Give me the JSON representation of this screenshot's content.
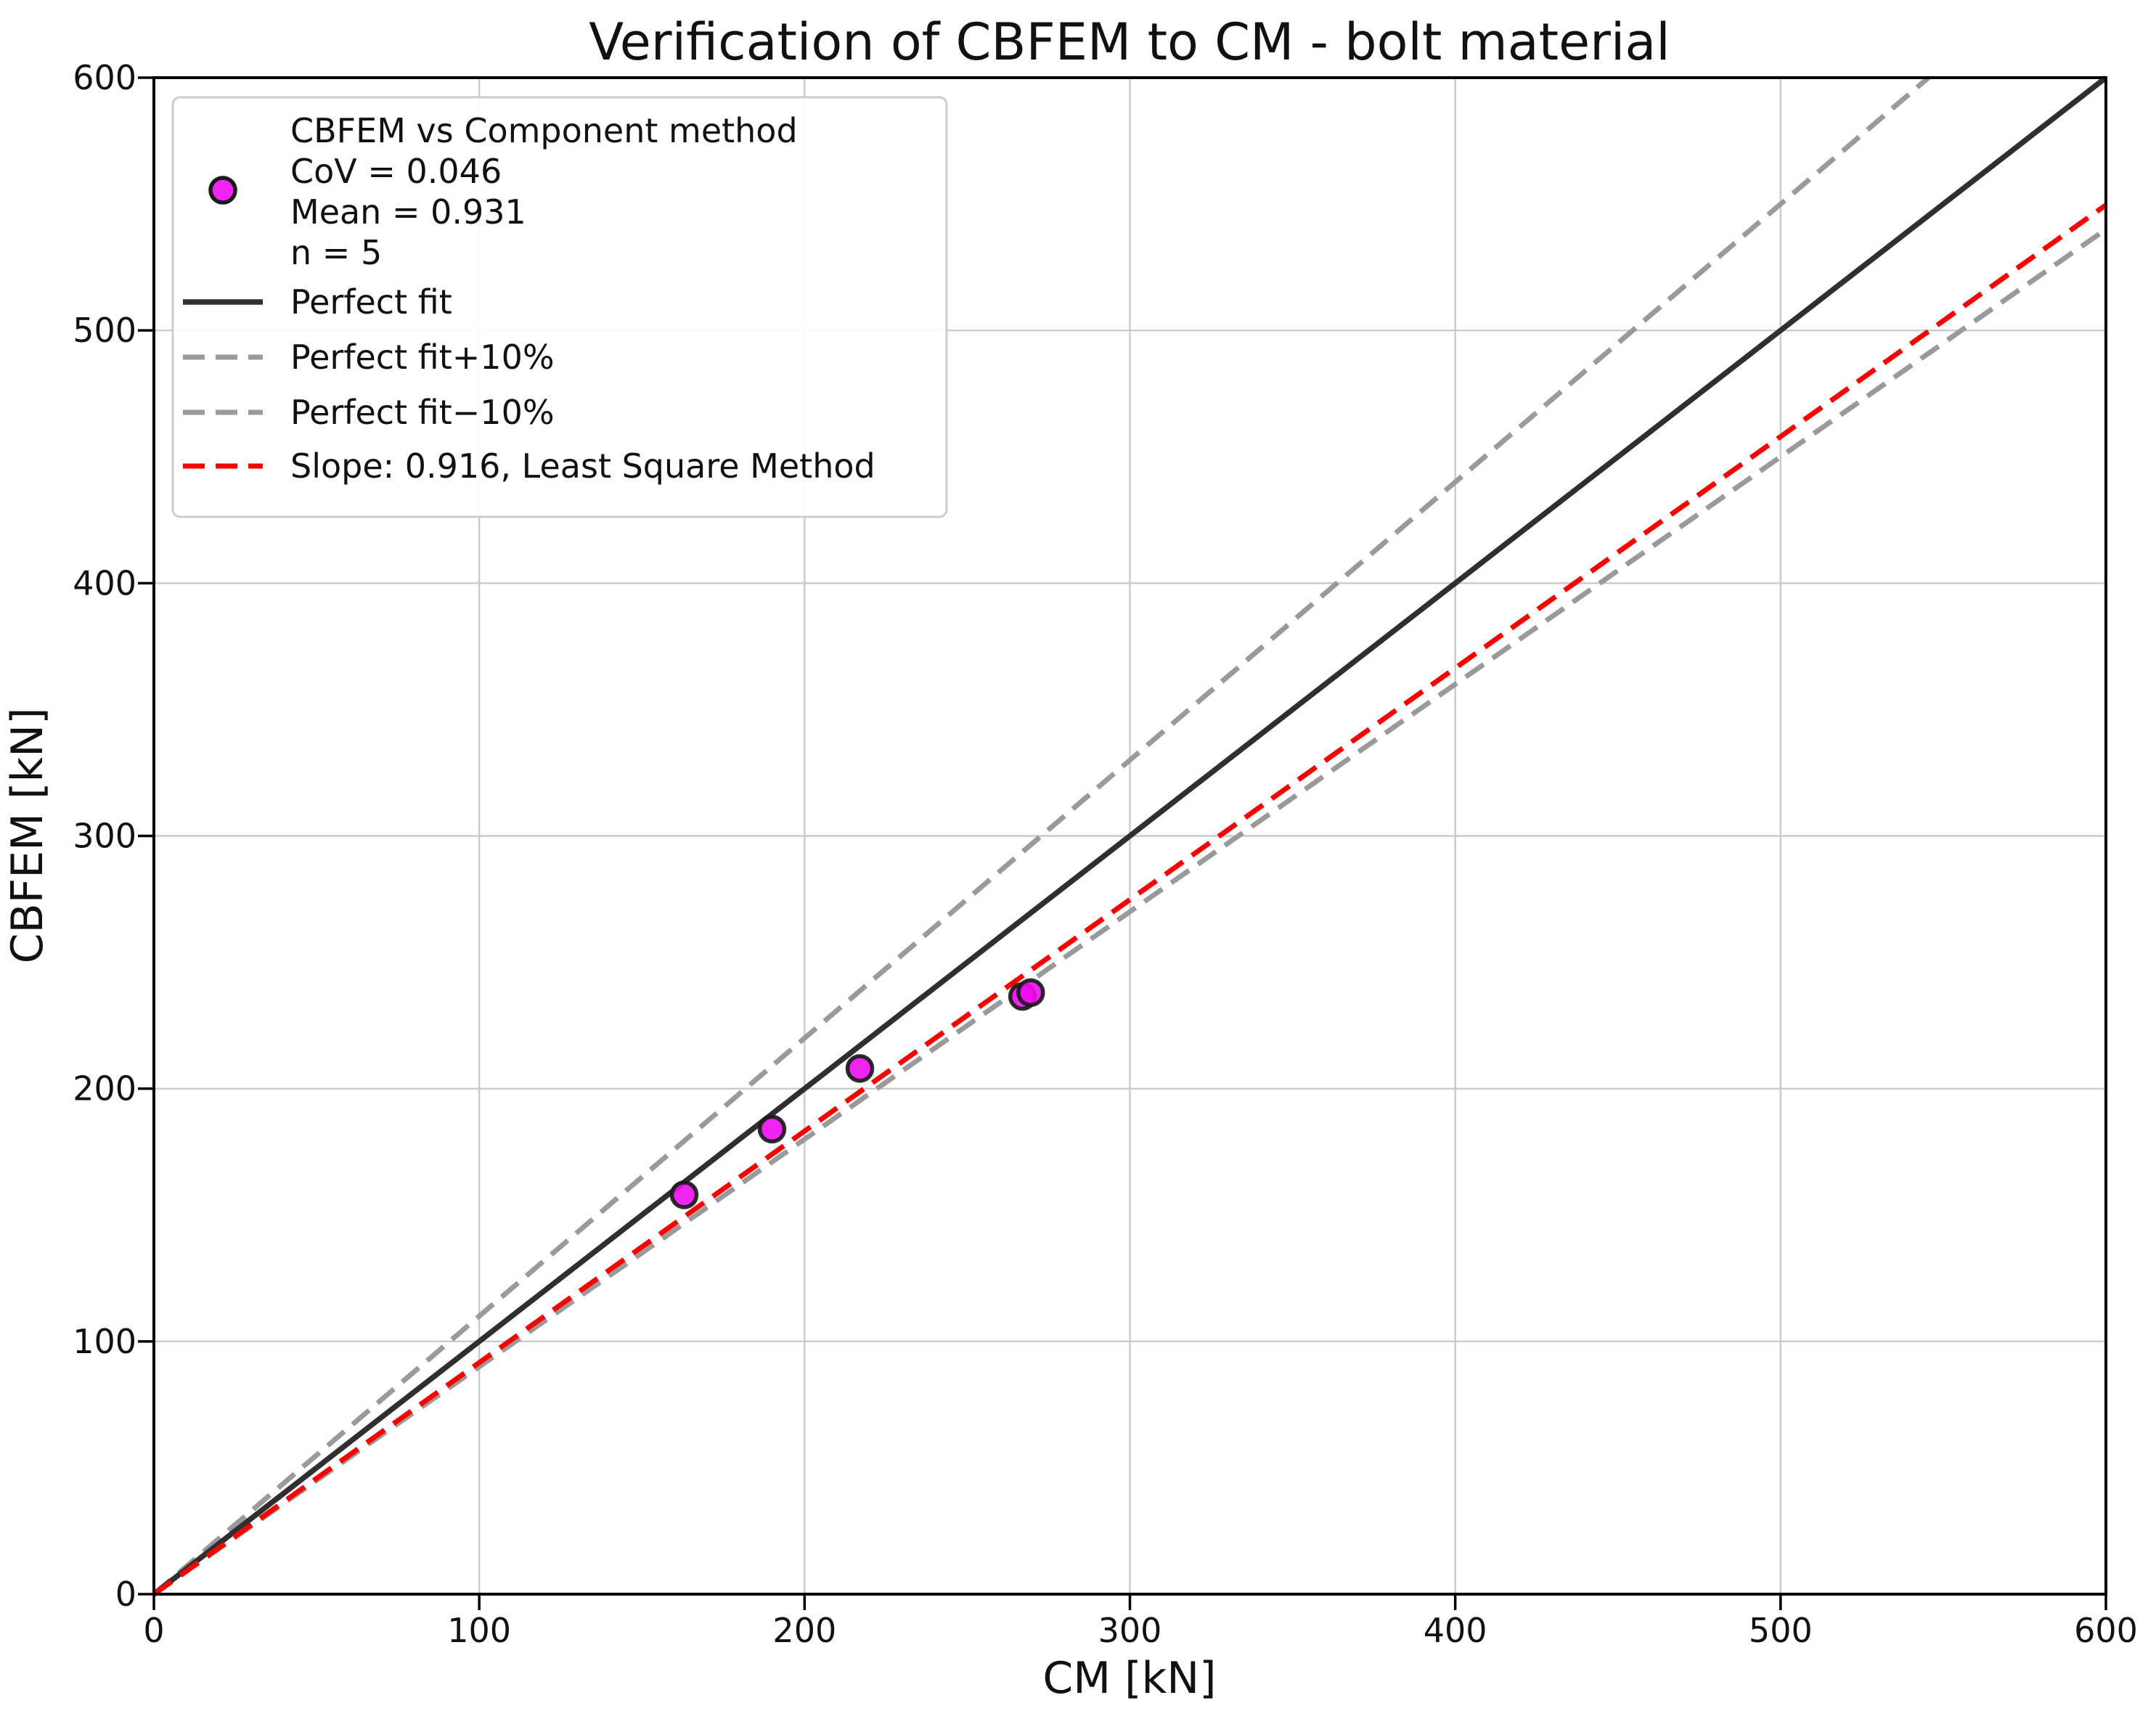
{
  "figure": {
    "window_title": "Verification of CBFEM to CM - bolt material"
  },
  "chart_data": {
    "type": "scatter",
    "title": "Verification of CBFEM to CM - bolt material",
    "xlabel": "CM [kN]",
    "ylabel": "CBFEM [kN]",
    "xlim": [
      0,
      600
    ],
    "ylim": [
      0,
      600
    ],
    "xticks": [
      0,
      100,
      200,
      300,
      400,
      500,
      600
    ],
    "yticks": [
      0,
      100,
      200,
      300,
      400,
      500,
      600
    ],
    "grid": true,
    "legend_position": "upper left",
    "scatter": {
      "label_lines": [
        "CBFEM vs Component method",
        "CoV = 0.046",
        "Mean = 0.931",
        "n = 5"
      ],
      "stats": {
        "cov": 0.046,
        "mean": 0.931,
        "n": 5
      },
      "marker_color": "#ee0cee",
      "marker_edge_color": "#1a1a1a",
      "points": [
        [
          163,
          158
        ],
        [
          190,
          184
        ],
        [
          217,
          208
        ],
        [
          267,
          236.5
        ],
        [
          269.5,
          238
        ]
      ]
    },
    "lines": [
      {
        "label": "Perfect fit",
        "slope": 1.0,
        "style": "solid",
        "color": "#2f2f2f"
      },
      {
        "label": "Perfect fit+10%",
        "slope": 1.1,
        "style": "dashed",
        "color": "#9a9a9a"
      },
      {
        "label": "Perfect fit−10%",
        "slope": 0.9,
        "style": "dashed",
        "color": "#9a9a9a"
      },
      {
        "label": "Slope: 0.916, Least Square Method",
        "slope": 0.916,
        "style": "dashed",
        "color": "#fb0000"
      }
    ],
    "colors": {
      "grid": "#cacaca",
      "spine": "#000000",
      "background": "#ffffff",
      "text": "#111111",
      "legend_border": "#cccccc",
      "legend_fill": "#ffffff"
    }
  }
}
